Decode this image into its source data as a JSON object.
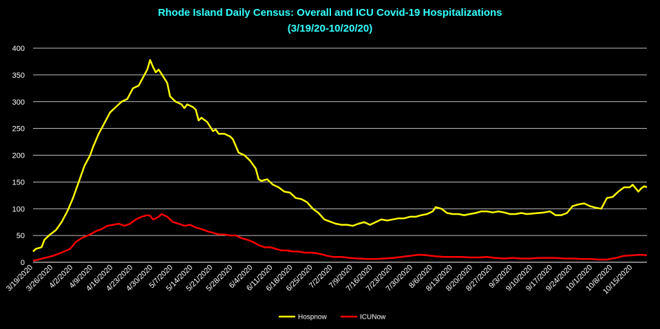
{
  "colors": {
    "background": "#000000",
    "title": "#33ffff",
    "grid": "#ffffff",
    "hosp": "#ffff00",
    "icu": "#ff0000"
  },
  "chart_data": {
    "type": "line",
    "title": "Rhode Island Daily Census: Overall and ICU Covid-19 Hospitalizations",
    "subtitle": "(3/19/20-10/20/20)",
    "ylim": [
      0,
      400
    ],
    "y_ticks": [
      0,
      50,
      100,
      150,
      200,
      250,
      300,
      350,
      400
    ],
    "x_ticks": [
      "3/19/2020",
      "3/26/2020",
      "4/2/2020",
      "4/9/2020",
      "4/16/2020",
      "4/23/2020",
      "4/30/2020",
      "5/7/2020",
      "5/14/2020",
      "5/21/2020",
      "5/28/2020",
      "6/4/2020",
      "6/11/2020",
      "6/18/2020",
      "6/25/2020",
      "7/2/2020",
      "7/9/2020",
      "7/16/2020",
      "7/23/2020",
      "7/30/2020",
      "8/6/2020",
      "8/13/2020",
      "8/20/2020",
      "8/27/2020",
      "9/3/2020",
      "9/10/2020",
      "9/17/2020",
      "9/24/2020",
      "10/1/2020",
      "10/8/2020",
      "10/15/2020"
    ],
    "x_range": [
      "3/19/2020",
      "10/20/2020"
    ],
    "grid": true,
    "legend_position": "bottom",
    "series": [
      {
        "name": "Hospnow",
        "color": "#ffff00",
        "points": [
          [
            "3/19/2020",
            20
          ],
          [
            "3/20/2020",
            25
          ],
          [
            "3/22/2020",
            28
          ],
          [
            "3/23/2020",
            42
          ],
          [
            "3/25/2020",
            52
          ],
          [
            "3/27/2020",
            60
          ],
          [
            "3/29/2020",
            75
          ],
          [
            "3/31/2020",
            95
          ],
          [
            "4/2/2020",
            120
          ],
          [
            "4/4/2020",
            150
          ],
          [
            "4/6/2020",
            180
          ],
          [
            "4/8/2020",
            200
          ],
          [
            "4/9/2020",
            215
          ],
          [
            "4/11/2020",
            240
          ],
          [
            "4/13/2020",
            260
          ],
          [
            "4/15/2020",
            280
          ],
          [
            "4/17/2020",
            290
          ],
          [
            "4/19/2020",
            300
          ],
          [
            "4/21/2020",
            305
          ],
          [
            "4/23/2020",
            325
          ],
          [
            "4/25/2020",
            330
          ],
          [
            "4/27/2020",
            350
          ],
          [
            "4/28/2020",
            360
          ],
          [
            "4/29/2020",
            378
          ],
          [
            "4/30/2020",
            365
          ],
          [
            "5/1/2020",
            355
          ],
          [
            "5/2/2020",
            360
          ],
          [
            "5/3/2020",
            352
          ],
          [
            "5/5/2020",
            335
          ],
          [
            "5/6/2020",
            310
          ],
          [
            "5/8/2020",
            300
          ],
          [
            "5/10/2020",
            295
          ],
          [
            "5/11/2020",
            288
          ],
          [
            "5/12/2020",
            295
          ],
          [
            "5/14/2020",
            290
          ],
          [
            "5/15/2020",
            285
          ],
          [
            "5/16/2020",
            265
          ],
          [
            "5/17/2020",
            270
          ],
          [
            "5/19/2020",
            262
          ],
          [
            "5/21/2020",
            245
          ],
          [
            "5/22/2020",
            248
          ],
          [
            "5/23/2020",
            240
          ],
          [
            "5/25/2020",
            240
          ],
          [
            "5/27/2020",
            235
          ],
          [
            "5/28/2020",
            230
          ],
          [
            "5/30/2020",
            205
          ],
          [
            "6/1/2020",
            200
          ],
          [
            "6/3/2020",
            190
          ],
          [
            "6/5/2020",
            175
          ],
          [
            "6/6/2020",
            155
          ],
          [
            "6/7/2020",
            152
          ],
          [
            "6/9/2020",
            155
          ],
          [
            "6/11/2020",
            145
          ],
          [
            "6/13/2020",
            140
          ],
          [
            "6/15/2020",
            132
          ],
          [
            "6/17/2020",
            130
          ],
          [
            "6/19/2020",
            120
          ],
          [
            "6/21/2020",
            118
          ],
          [
            "6/23/2020",
            112
          ],
          [
            "6/25/2020",
            100
          ],
          [
            "6/27/2020",
            92
          ],
          [
            "6/29/2020",
            80
          ],
          [
            "7/1/2020",
            76
          ],
          [
            "7/3/2020",
            72
          ],
          [
            "7/5/2020",
            70
          ],
          [
            "7/7/2020",
            70
          ],
          [
            "7/9/2020",
            68
          ],
          [
            "7/11/2020",
            72
          ],
          [
            "7/13/2020",
            75
          ],
          [
            "7/15/2020",
            70
          ],
          [
            "7/17/2020",
            75
          ],
          [
            "7/19/2020",
            80
          ],
          [
            "7/21/2020",
            78
          ],
          [
            "7/23/2020",
            80
          ],
          [
            "7/25/2020",
            82
          ],
          [
            "7/27/2020",
            82
          ],
          [
            "7/29/2020",
            85
          ],
          [
            "7/31/2020",
            85
          ],
          [
            "8/2/2020",
            88
          ],
          [
            "8/4/2020",
            90
          ],
          [
            "8/6/2020",
            95
          ],
          [
            "8/7/2020",
            103
          ],
          [
            "8/9/2020",
            100
          ],
          [
            "8/11/2020",
            92
          ],
          [
            "8/13/2020",
            90
          ],
          [
            "8/15/2020",
            90
          ],
          [
            "8/17/2020",
            88
          ],
          [
            "8/19/2020",
            90
          ],
          [
            "8/21/2020",
            92
          ],
          [
            "8/23/2020",
            95
          ],
          [
            "8/25/2020",
            95
          ],
          [
            "8/27/2020",
            93
          ],
          [
            "8/29/2020",
            95
          ],
          [
            "8/31/2020",
            93
          ],
          [
            "9/2/2020",
            90
          ],
          [
            "9/4/2020",
            90
          ],
          [
            "9/6/2020",
            92
          ],
          [
            "9/8/2020",
            90
          ],
          [
            "9/10/2020",
            91
          ],
          [
            "9/12/2020",
            92
          ],
          [
            "9/14/2020",
            93
          ],
          [
            "9/16/2020",
            95
          ],
          [
            "9/18/2020",
            88
          ],
          [
            "9/20/2020",
            88
          ],
          [
            "9/22/2020",
            92
          ],
          [
            "9/24/2020",
            105
          ],
          [
            "9/26/2020",
            108
          ],
          [
            "9/28/2020",
            110
          ],
          [
            "9/30/2020",
            105
          ],
          [
            "10/2/2020",
            102
          ],
          [
            "10/4/2020",
            100
          ],
          [
            "10/6/2020",
            120
          ],
          [
            "10/8/2020",
            122
          ],
          [
            "10/10/2020",
            132
          ],
          [
            "10/12/2020",
            140
          ],
          [
            "10/14/2020",
            140
          ],
          [
            "10/15/2020",
            145
          ],
          [
            "10/17/2020",
            132
          ],
          [
            "10/18/2020",
            138
          ],
          [
            "10/19/2020",
            142
          ],
          [
            "10/20/2020",
            140
          ]
        ]
      },
      {
        "name": "ICUNow",
        "color": "#ff0000",
        "points": [
          [
            "3/19/2020",
            3
          ],
          [
            "3/21/2020",
            5
          ],
          [
            "3/23/2020",
            8
          ],
          [
            "3/26/2020",
            12
          ],
          [
            "3/29/2020",
            18
          ],
          [
            "4/1/2020",
            25
          ],
          [
            "4/3/2020",
            38
          ],
          [
            "4/5/2020",
            45
          ],
          [
            "4/8/2020",
            52
          ],
          [
            "4/10/2020",
            58
          ],
          [
            "4/12/2020",
            62
          ],
          [
            "4/14/2020",
            68
          ],
          [
            "4/16/2020",
            70
          ],
          [
            "4/18/2020",
            72
          ],
          [
            "4/20/2020",
            68
          ],
          [
            "4/22/2020",
            72
          ],
          [
            "4/24/2020",
            80
          ],
          [
            "4/26/2020",
            85
          ],
          [
            "4/28/2020",
            88
          ],
          [
            "4/29/2020",
            87
          ],
          [
            "4/30/2020",
            80
          ],
          [
            "5/1/2020",
            82
          ],
          [
            "5/2/2020",
            85
          ],
          [
            "5/3/2020",
            90
          ],
          [
            "5/5/2020",
            85
          ],
          [
            "5/7/2020",
            75
          ],
          [
            "5/9/2020",
            72
          ],
          [
            "5/11/2020",
            68
          ],
          [
            "5/13/2020",
            70
          ],
          [
            "5/15/2020",
            65
          ],
          [
            "5/17/2020",
            62
          ],
          [
            "5/19/2020",
            58
          ],
          [
            "5/21/2020",
            55
          ],
          [
            "5/23/2020",
            52
          ],
          [
            "5/25/2020",
            52
          ],
          [
            "5/27/2020",
            50
          ],
          [
            "5/29/2020",
            50
          ],
          [
            "5/31/2020",
            45
          ],
          [
            "6/2/2020",
            42
          ],
          [
            "6/4/2020",
            38
          ],
          [
            "6/6/2020",
            32
          ],
          [
            "6/8/2020",
            28
          ],
          [
            "6/10/2020",
            28
          ],
          [
            "6/12/2020",
            25
          ],
          [
            "6/14/2020",
            22
          ],
          [
            "6/16/2020",
            22
          ],
          [
            "6/18/2020",
            20
          ],
          [
            "6/20/2020",
            20
          ],
          [
            "6/22/2020",
            18
          ],
          [
            "6/24/2020",
            18
          ],
          [
            "6/26/2020",
            17
          ],
          [
            "6/28/2020",
            15
          ],
          [
            "6/30/2020",
            12
          ],
          [
            "7/2/2020",
            10
          ],
          [
            "7/5/2020",
            10
          ],
          [
            "7/8/2020",
            8
          ],
          [
            "7/11/2020",
            7
          ],
          [
            "7/14/2020",
            6
          ],
          [
            "7/17/2020",
            6
          ],
          [
            "7/20/2020",
            7
          ],
          [
            "7/23/2020",
            8
          ],
          [
            "7/26/2020",
            10
          ],
          [
            "7/29/2020",
            12
          ],
          [
            "8/1/2020",
            14
          ],
          [
            "8/4/2020",
            13
          ],
          [
            "8/7/2020",
            11
          ],
          [
            "8/10/2020",
            10
          ],
          [
            "8/13/2020",
            10
          ],
          [
            "8/16/2020",
            10
          ],
          [
            "8/19/2020",
            9
          ],
          [
            "8/22/2020",
            9
          ],
          [
            "8/25/2020",
            10
          ],
          [
            "8/28/2020",
            8
          ],
          [
            "8/31/2020",
            7
          ],
          [
            "9/3/2020",
            8
          ],
          [
            "9/6/2020",
            7
          ],
          [
            "9/9/2020",
            7
          ],
          [
            "9/12/2020",
            8
          ],
          [
            "9/15/2020",
            8
          ],
          [
            "9/18/2020",
            8
          ],
          [
            "9/21/2020",
            7
          ],
          [
            "9/24/2020",
            7
          ],
          [
            "9/27/2020",
            6
          ],
          [
            "9/30/2020",
            6
          ],
          [
            "10/3/2020",
            5
          ],
          [
            "10/6/2020",
            5
          ],
          [
            "10/9/2020",
            8
          ],
          [
            "10/12/2020",
            12
          ],
          [
            "10/15/2020",
            13
          ],
          [
            "10/18/2020",
            14
          ],
          [
            "10/20/2020",
            13
          ]
        ]
      }
    ]
  }
}
